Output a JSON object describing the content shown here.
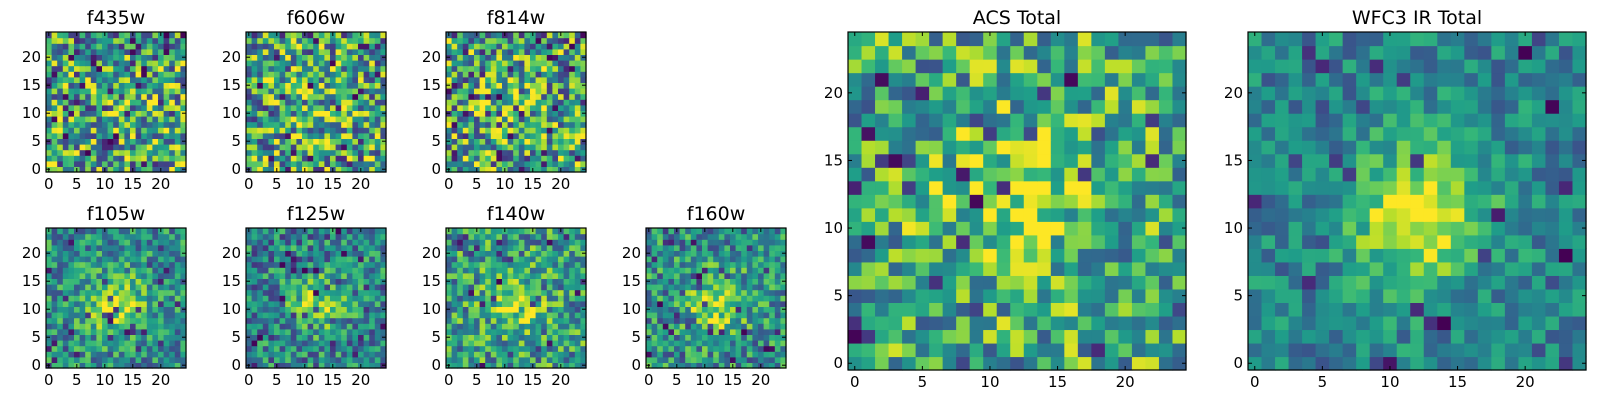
{
  "chart_data": [
    {
      "type": "heatmap",
      "title": "f435w",
      "grid_size": 25,
      "colormap": "viridis",
      "xticks": [
        "0",
        "5",
        "10",
        "15",
        "20"
      ],
      "yticks": [
        "0",
        "5",
        "10",
        "15",
        "20"
      ],
      "xlim": [
        0,
        24
      ],
      "ylim": [
        0,
        24
      ],
      "pattern": {
        "noise": 0.85,
        "blob": 0.1,
        "cx": 12,
        "cy": 12,
        "sigma": 4,
        "base": 0.6,
        "darkness": 0.12
      }
    },
    {
      "type": "heatmap",
      "title": "f606w",
      "grid_size": 25,
      "colormap": "viridis",
      "xticks": [
        "0",
        "5",
        "10",
        "15",
        "20"
      ],
      "yticks": [
        "0",
        "5",
        "10",
        "15",
        "20"
      ],
      "xlim": [
        0,
        24
      ],
      "ylim": [
        0,
        24
      ],
      "pattern": {
        "noise": 0.85,
        "blob": 0.1,
        "cx": 12,
        "cy": 12,
        "sigma": 4,
        "base": 0.6,
        "darkness": 0.12
      }
    },
    {
      "type": "heatmap",
      "title": "f814w",
      "grid_size": 25,
      "colormap": "viridis",
      "xticks": [
        "0",
        "5",
        "10",
        "15",
        "20"
      ],
      "yticks": [
        "0",
        "5",
        "10",
        "15",
        "20"
      ],
      "xlim": [
        0,
        24
      ],
      "ylim": [
        0,
        24
      ],
      "pattern": {
        "noise": 0.85,
        "blob": 0.2,
        "cx": 12,
        "cy": 12,
        "sigma": 4,
        "base": 0.6,
        "darkness": 0.12
      }
    },
    {
      "type": "heatmap",
      "title": "f105w",
      "grid_size": 25,
      "colormap": "viridis",
      "xticks": [
        "0",
        "5",
        "10",
        "15",
        "20"
      ],
      "yticks": [
        "0",
        "5",
        "10",
        "15",
        "20"
      ],
      "xlim": [
        0,
        24
      ],
      "ylim": [
        0,
        24
      ],
      "pattern": {
        "noise": 0.55,
        "blob": 0.45,
        "cx": 12,
        "cy": 11,
        "sigma": 3.5,
        "base": 0.5,
        "darkness": 0.06
      }
    },
    {
      "type": "heatmap",
      "title": "f125w",
      "grid_size": 25,
      "colormap": "viridis",
      "xticks": [
        "0",
        "5",
        "10",
        "15",
        "20"
      ],
      "yticks": [
        "0",
        "5",
        "10",
        "15",
        "20"
      ],
      "xlim": [
        0,
        24
      ],
      "ylim": [
        0,
        24
      ],
      "pattern": {
        "noise": 0.6,
        "blob": 0.4,
        "cx": 12,
        "cy": 11,
        "sigma": 3.5,
        "base": 0.45,
        "darkness": 0.06
      }
    },
    {
      "type": "heatmap",
      "title": "f140w",
      "grid_size": 25,
      "colormap": "viridis",
      "xticks": [
        "0",
        "5",
        "10",
        "15",
        "20"
      ],
      "yticks": [
        "0",
        "5",
        "10",
        "15",
        "20"
      ],
      "xlim": [
        0,
        24
      ],
      "ylim": [
        0,
        24
      ],
      "pattern": {
        "noise": 0.65,
        "blob": 0.3,
        "cx": 12,
        "cy": 11,
        "sigma": 3.5,
        "base": 0.55,
        "darkness": 0.06
      }
    },
    {
      "type": "heatmap",
      "title": "f160w",
      "grid_size": 25,
      "colormap": "viridis",
      "xticks": [
        "0",
        "5",
        "10",
        "15",
        "20"
      ],
      "yticks": [
        "0",
        "5",
        "10",
        "15",
        "20"
      ],
      "xlim": [
        0,
        24
      ],
      "ylim": [
        0,
        24
      ],
      "pattern": {
        "noise": 0.6,
        "blob": 0.4,
        "cx": 12,
        "cy": 11,
        "sigma": 3.5,
        "base": 0.5,
        "darkness": 0.06
      }
    },
    {
      "type": "heatmap",
      "title": "ACS Total",
      "grid_size": 25,
      "colormap": "viridis",
      "xticks": [
        "0",
        "5",
        "10",
        "15",
        "20"
      ],
      "yticks": [
        "0",
        "5",
        "10",
        "15",
        "20"
      ],
      "xlim": [
        0,
        24
      ],
      "ylim": [
        0,
        24
      ],
      "pattern": {
        "noise": 0.7,
        "blob": 0.3,
        "cx": 12,
        "cy": 12,
        "sigma": 4,
        "base": 0.6,
        "darkness": 0.05
      }
    },
    {
      "type": "heatmap",
      "title": "WFC3 IR Total",
      "grid_size": 25,
      "colormap": "viridis",
      "xticks": [
        "0",
        "5",
        "10",
        "15",
        "20"
      ],
      "yticks": [
        "0",
        "5",
        "10",
        "15",
        "20"
      ],
      "xlim": [
        0,
        24
      ],
      "ylim": [
        0,
        24
      ],
      "pattern": {
        "noise": 0.4,
        "blob": 0.55,
        "cx": 12,
        "cy": 11,
        "sigma": 3.5,
        "base": 0.45,
        "darkness": 0.04
      }
    }
  ]
}
